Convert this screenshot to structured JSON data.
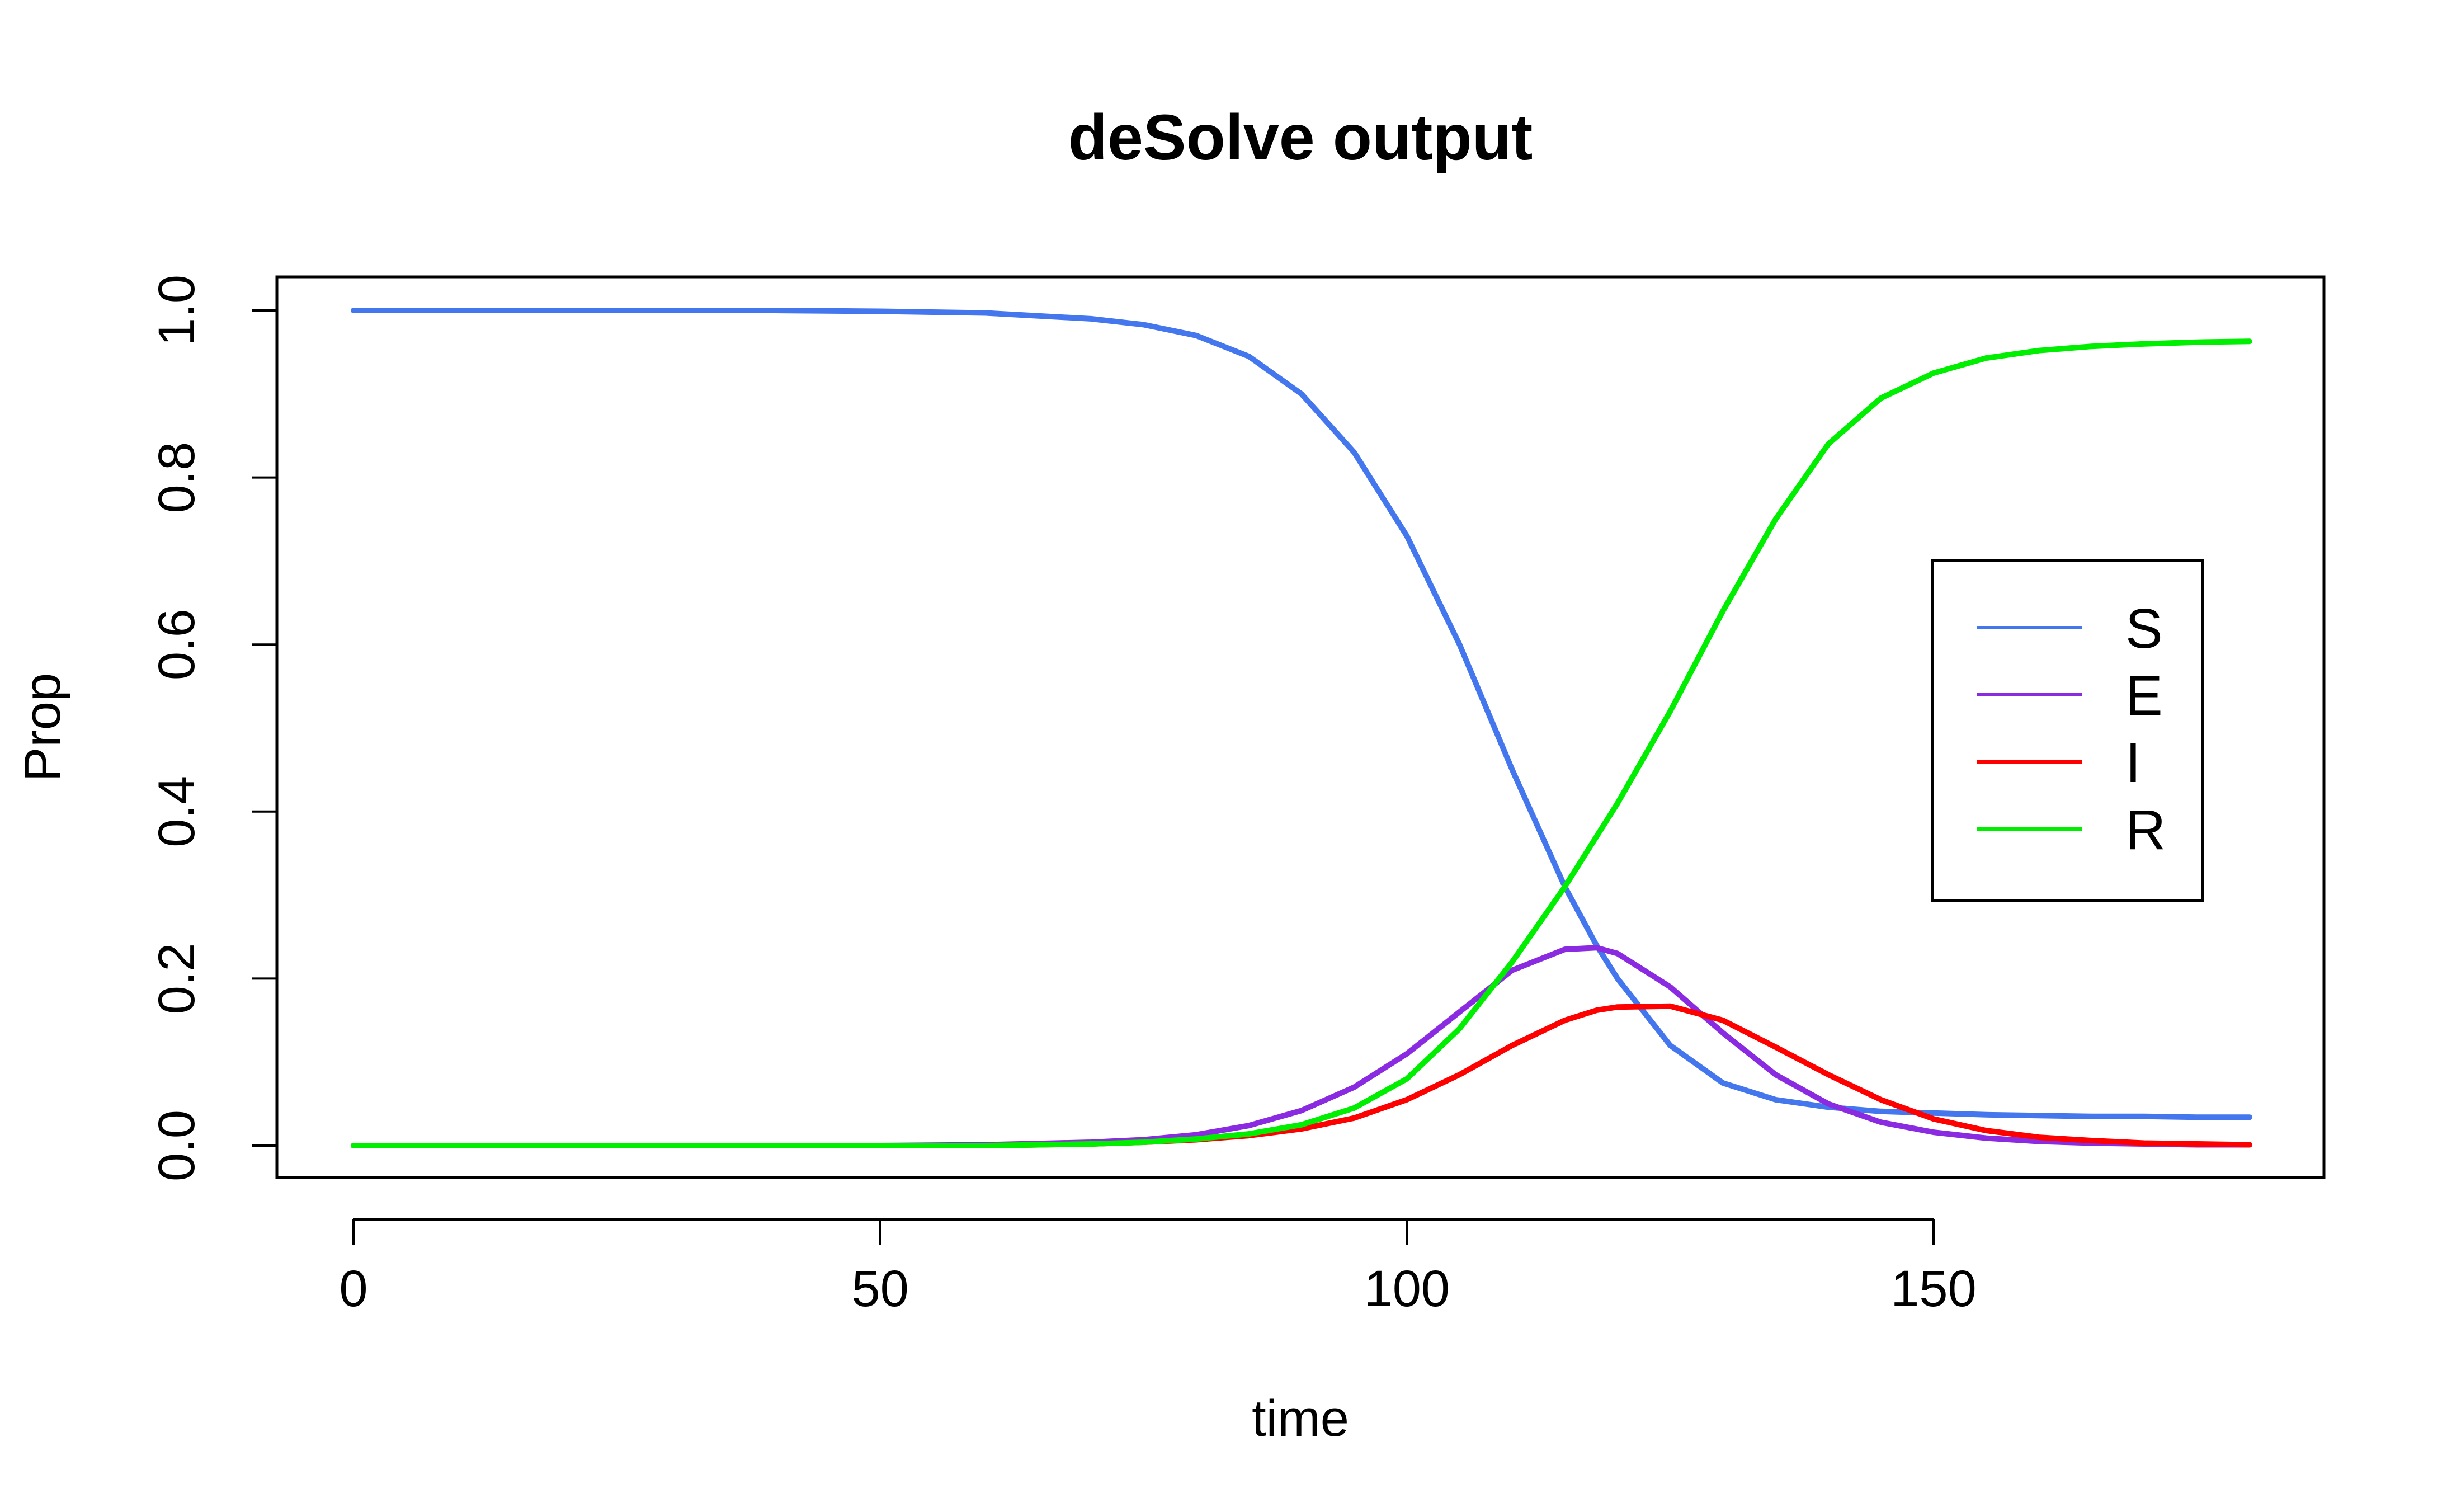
{
  "chart_data": {
    "type": "line",
    "title": "deSolve output",
    "xlabel": "time",
    "ylabel": "Prop",
    "xlim": [
      0,
      180
    ],
    "ylim": [
      0,
      1
    ],
    "x_ticks": [
      0,
      50,
      100,
      150
    ],
    "y_ticks": [
      0,
      0.2,
      0.4,
      0.6,
      0.8,
      1
    ],
    "x_tick_labels": [
      "0",
      "50",
      "100",
      "150"
    ],
    "y_tick_labels": [
      "0.0",
      "0.2",
      "0.4",
      "0.6",
      "0.8",
      "1.0"
    ],
    "grid": false,
    "legend": "right",
    "x": [
      0,
      10,
      20,
      30,
      40,
      50,
      60,
      70,
      75,
      80,
      85,
      90,
      95,
      100,
      105,
      110,
      115,
      118,
      120,
      125,
      130,
      135,
      140,
      145,
      150,
      155,
      160,
      165,
      170,
      175,
      180
    ],
    "series": [
      {
        "name": "S",
        "color": "#4477EE",
        "values": [
          1.0,
          1.0,
          1.0,
          1.0,
          1.0,
          0.999,
          0.997,
          0.99,
          0.983,
          0.97,
          0.945,
          0.9,
          0.83,
          0.73,
          0.6,
          0.45,
          0.31,
          0.24,
          0.2,
          0.12,
          0.075,
          0.055,
          0.046,
          0.041,
          0.039,
          0.037,
          0.036,
          0.035,
          0.035,
          0.034,
          0.034
        ]
      },
      {
        "name": "E",
        "color": "#8A2BE2",
        "values": [
          0.0,
          0.0,
          0.0,
          0.0,
          0.0,
          0.0,
          0.001,
          0.004,
          0.007,
          0.013,
          0.024,
          0.042,
          0.07,
          0.11,
          0.16,
          0.21,
          0.235,
          0.237,
          0.23,
          0.19,
          0.135,
          0.085,
          0.05,
          0.028,
          0.016,
          0.009,
          0.005,
          0.003,
          0.002,
          0.001,
          0.001
        ]
      },
      {
        "name": "I",
        "color": "#FF0000",
        "values": [
          0.0,
          0.0,
          0.0,
          0.0,
          0.0,
          0.0,
          0.0,
          0.002,
          0.004,
          0.007,
          0.012,
          0.02,
          0.033,
          0.055,
          0.085,
          0.12,
          0.15,
          0.162,
          0.166,
          0.167,
          0.15,
          0.118,
          0.085,
          0.055,
          0.032,
          0.018,
          0.01,
          0.006,
          0.003,
          0.002,
          0.001
        ]
      },
      {
        "name": "R",
        "color": "#00EE00",
        "values": [
          0.0,
          0.0,
          0.0,
          0.0,
          0.0,
          0.0,
          0.0,
          0.002,
          0.004,
          0.008,
          0.014,
          0.025,
          0.045,
          0.08,
          0.14,
          0.22,
          0.31,
          0.37,
          0.41,
          0.52,
          0.64,
          0.75,
          0.84,
          0.895,
          0.925,
          0.943,
          0.952,
          0.957,
          0.96,
          0.962,
          0.963
        ]
      }
    ]
  }
}
